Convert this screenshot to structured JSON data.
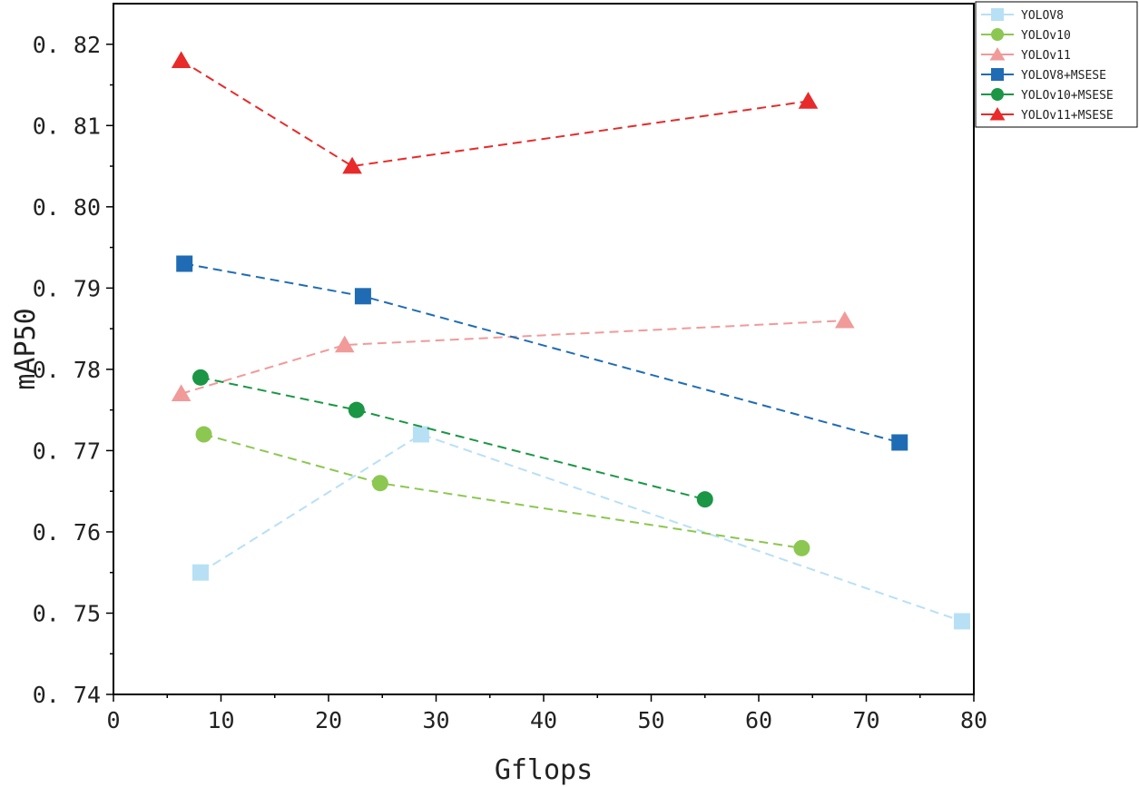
{
  "chart_data": {
    "type": "line",
    "title": "",
    "xlabel": "Gflops",
    "ylabel": "mAP50",
    "xlim": [
      0,
      80
    ],
    "ylim": [
      0.74,
      0.825
    ],
    "xticks": [
      0,
      10,
      20,
      30,
      40,
      50,
      60,
      70,
      80
    ],
    "yticks": [
      0.74,
      0.75,
      0.76,
      0.77,
      0.78,
      0.79,
      0.8,
      0.81,
      0.82
    ],
    "xtick_labels": [
      "0",
      "10",
      "20",
      "30",
      "40",
      "50",
      "60",
      "70",
      "80"
    ],
    "ytick_labels": [
      "0. 74",
      "0. 75",
      "0. 76",
      "0. 77",
      "0. 78",
      "0. 79",
      "0. 80",
      "0. 81",
      "0. 82"
    ],
    "grid": false,
    "legend_position": "top-right outside",
    "series": [
      {
        "name": "YOLOV8",
        "marker": "square",
        "color": "#b8e0f5",
        "points": [
          [
            8.1,
            0.755
          ],
          [
            28.6,
            0.772
          ],
          [
            78.9,
            0.749
          ]
        ]
      },
      {
        "name": "YOLOv10",
        "marker": "circle",
        "color": "#8cc751",
        "points": [
          [
            8.4,
            0.772
          ],
          [
            24.8,
            0.766
          ],
          [
            64.0,
            0.758
          ]
        ]
      },
      {
        "name": "YOLOv11",
        "marker": "triangle",
        "color": "#f19a9a",
        "points": [
          [
            6.3,
            0.777
          ],
          [
            21.5,
            0.783
          ],
          [
            68.0,
            0.786
          ]
        ]
      },
      {
        "name": "YOLOV8+MSESE",
        "marker": "square",
        "color": "#1f6cb4",
        "points": [
          [
            6.6,
            0.793
          ],
          [
            23.2,
            0.789
          ],
          [
            73.1,
            0.771
          ]
        ]
      },
      {
        "name": "YOLOv10+MSESE",
        "marker": "circle",
        "color": "#1a9645",
        "points": [
          [
            8.1,
            0.779
          ],
          [
            22.6,
            0.775
          ],
          [
            55.0,
            0.764
          ]
        ]
      },
      {
        "name": "YOLOv11+MSESE",
        "marker": "triangle",
        "color": "#e82a2a",
        "points": [
          [
            6.3,
            0.818
          ],
          [
            22.2,
            0.805
          ],
          [
            64.6,
            0.813
          ]
        ]
      }
    ]
  }
}
